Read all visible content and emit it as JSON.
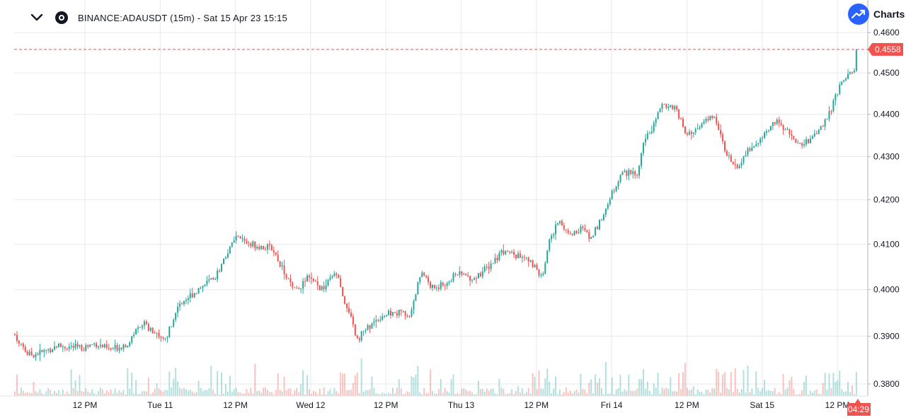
{
  "header": {
    "title": "BINANCE:ADAUSDT (15m) - Sat 15 Apr 23 15:15",
    "collapse_icon": "chevron-down-icon",
    "exchange_icon": "exchange-logo-icon"
  },
  "brand": {
    "label": "Charts",
    "icon": "trending-up-icon",
    "color": "#2962ff"
  },
  "colors": {
    "up": "#26a69a",
    "down": "#ef5350",
    "price_line": "#ef5350",
    "grid": "#e8eaf0",
    "text": "#131722"
  },
  "chart_data": {
    "type": "candlestick",
    "symbol": "BINANCE:ADAUSDT",
    "interval": "15m",
    "last_price": 0.4558,
    "countdown": "04:29",
    "y_ticks": [
      "0.4600",
      "0.4500",
      "0.4400",
      "0.4300",
      "0.4200",
      "0.4100",
      "0.4000",
      "0.3900",
      "0.3800"
    ],
    "ylim": [
      0.378,
      0.4605
    ],
    "y_scale": "log",
    "x_ticks": [
      "12 PM",
      "Tue 11",
      "12 PM",
      "Wed 12",
      "12 PM",
      "Thu 13",
      "12 PM",
      "Fri 14",
      "12 PM",
      "Sat 15",
      "12 PM"
    ],
    "grid": true,
    "volume_pane": true,
    "price_path": [
      [
        0,
        0.3905
      ],
      [
        12,
        0.388
      ],
      [
        20,
        0.386
      ],
      [
        40,
        0.3866
      ],
      [
        60,
        0.388
      ],
      [
        95,
        0.3875
      ],
      [
        115,
        0.3885
      ],
      [
        135,
        0.387
      ],
      [
        160,
        0.3885
      ],
      [
        180,
        0.393
      ],
      [
        200,
        0.3905
      ],
      [
        215,
        0.3895
      ],
      [
        230,
        0.3965
      ],
      [
        260,
        0.4
      ],
      [
        285,
        0.403
      ],
      [
        305,
        0.409
      ],
      [
        315,
        0.4115
      ],
      [
        335,
        0.41
      ],
      [
        365,
        0.409
      ],
      [
        380,
        0.4045
      ],
      [
        395,
        0.3995
      ],
      [
        415,
        0.4025
      ],
      [
        435,
        0.4
      ],
      [
        455,
        0.4035
      ],
      [
        470,
        0.396
      ],
      [
        485,
        0.3895
      ],
      [
        505,
        0.3925
      ],
      [
        520,
        0.3945
      ],
      [
        545,
        0.395
      ],
      [
        560,
        0.3945
      ],
      [
        575,
        0.404
      ],
      [
        590,
        0.4005
      ],
      [
        610,
        0.401
      ],
      [
        625,
        0.4035
      ],
      [
        650,
        0.4025
      ],
      [
        670,
        0.405
      ],
      [
        690,
        0.4085
      ],
      [
        710,
        0.4075
      ],
      [
        730,
        0.406
      ],
      [
        745,
        0.4025
      ],
      [
        755,
        0.41
      ],
      [
        770,
        0.4155
      ],
      [
        785,
        0.412
      ],
      [
        800,
        0.4135
      ],
      [
        815,
        0.4115
      ],
      [
        830,
        0.4155
      ],
      [
        840,
        0.42
      ],
      [
        860,
        0.4265
      ],
      [
        880,
        0.4255
      ],
      [
        890,
        0.4345
      ],
      [
        905,
        0.4375
      ],
      [
        915,
        0.4425
      ],
      [
        935,
        0.4415
      ],
      [
        950,
        0.4345
      ],
      [
        970,
        0.4375
      ],
      [
        990,
        0.4395
      ],
      [
        1005,
        0.4315
      ],
      [
        1020,
        0.4275
      ],
      [
        1040,
        0.432
      ],
      [
        1055,
        0.434
      ],
      [
        1075,
        0.4385
      ],
      [
        1095,
        0.4355
      ],
      [
        1110,
        0.4325
      ],
      [
        1130,
        0.4345
      ],
      [
        1150,
        0.4395
      ],
      [
        1170,
        0.4485
      ],
      [
        1190,
        0.451
      ],
      [
        1200,
        0.4565
      ],
      [
        1210,
        0.4558
      ]
    ]
  }
}
